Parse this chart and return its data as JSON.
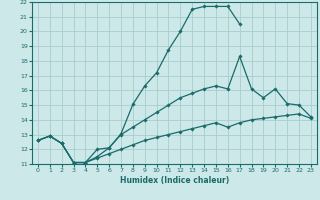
{
  "xlabel": "Humidex (Indice chaleur)",
  "xlim": [
    -0.5,
    23.5
  ],
  "ylim": [
    11,
    22
  ],
  "xticks": [
    0,
    1,
    2,
    3,
    4,
    5,
    6,
    7,
    8,
    9,
    10,
    11,
    12,
    13,
    14,
    15,
    16,
    17,
    18,
    19,
    20,
    21,
    22,
    23
  ],
  "yticks": [
    11,
    12,
    13,
    14,
    15,
    16,
    17,
    18,
    19,
    20,
    21,
    22
  ],
  "bg_color": "#cce8e8",
  "line_color": "#1a6b6b",
  "grid_color": "#aacccc",
  "curves": [
    {
      "x": [
        0,
        1,
        2,
        3,
        4,
        5,
        6,
        7,
        8,
        9,
        10,
        11,
        12,
        13,
        14,
        15,
        16,
        17
      ],
      "y": [
        12.6,
        12.9,
        12.4,
        11.1,
        11.1,
        12.0,
        12.1,
        13.05,
        15.05,
        16.3,
        17.2,
        18.75,
        20.0,
        21.5,
        21.7,
        21.7,
        21.7,
        20.5
      ]
    },
    {
      "x": [
        0,
        1,
        2,
        3,
        4,
        5,
        6,
        7,
        8,
        9,
        10,
        11,
        12,
        13,
        14,
        15,
        16,
        17,
        18,
        19,
        20,
        21,
        22,
        23
      ],
      "y": [
        12.6,
        12.9,
        12.4,
        11.1,
        11.1,
        11.5,
        12.1,
        13.0,
        13.5,
        14.0,
        14.5,
        15.0,
        15.5,
        15.8,
        16.1,
        16.3,
        16.1,
        18.3,
        16.1,
        15.5,
        16.1,
        15.1,
        15.0,
        14.2
      ]
    },
    {
      "x": [
        0,
        1,
        2,
        3,
        4,
        5,
        6,
        7,
        8,
        9,
        10,
        11,
        12,
        13,
        14,
        15,
        16,
        17,
        18,
        19,
        20,
        21,
        22,
        23
      ],
      "y": [
        12.6,
        12.9,
        12.4,
        11.1,
        11.1,
        11.4,
        11.7,
        12.0,
        12.3,
        12.6,
        12.8,
        13.0,
        13.2,
        13.4,
        13.6,
        13.8,
        13.5,
        13.8,
        14.0,
        14.1,
        14.2,
        14.3,
        14.4,
        14.1
      ]
    }
  ]
}
